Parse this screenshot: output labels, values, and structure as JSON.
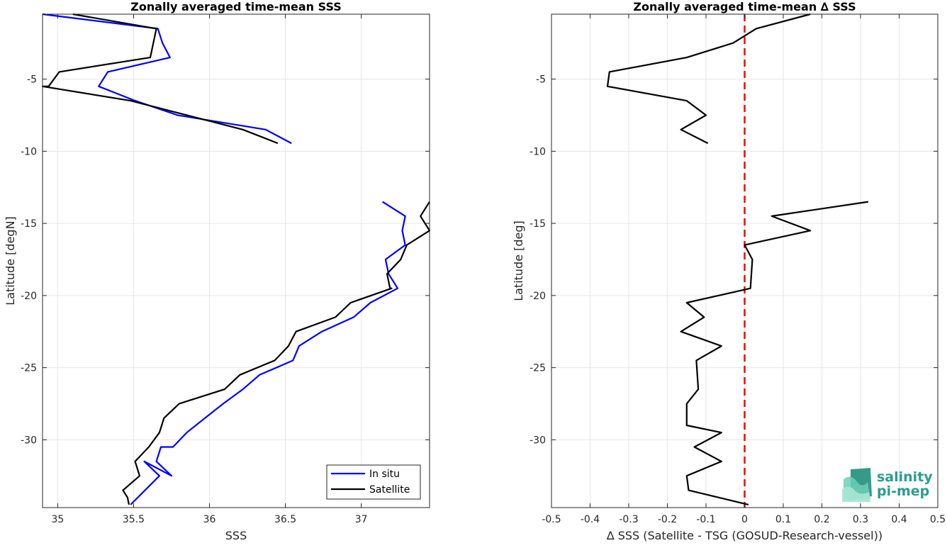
{
  "chart_data": [
    {
      "type": "line",
      "title": "Zonally averaged time-mean SSS",
      "xlabel": "SSS",
      "ylabel": "Latitude [degN]",
      "xlim": [
        34.9,
        37.45
      ],
      "ylim": [
        -34.7,
        -0.5
      ],
      "xticks": [
        35,
        35.5,
        36,
        36.5,
        37
      ],
      "xtick_labels": [
        "35",
        "35.5",
        "36",
        "36.5",
        "37"
      ],
      "yticks": [
        -5,
        -10,
        -15,
        -20,
        -25,
        -30
      ],
      "ytick_labels": [
        "-5",
        "-10",
        "-15",
        "-20",
        "-25",
        "-30"
      ],
      "grid": true,
      "legend": "bottom-right",
      "series": [
        {
          "name": "In situ",
          "color": "#0000ff",
          "segments": [
            {
              "x": [
                34.9,
                35.66,
                35.69,
                35.74,
                35.33,
                35.27,
                35.51,
                35.79,
                36.37,
                36.54
              ],
              "y": [
                -0.5,
                -1.5,
                -2.5,
                -3.5,
                -4.5,
                -5.5,
                -6.5,
                -7.5,
                -8.5,
                -9.45
              ]
            },
            {
              "x": [
                37.14,
                37.29,
                37.27,
                37.29,
                37.16,
                37.18,
                37.24,
                37.06,
                36.95,
                36.74,
                36.59,
                36.55,
                36.33,
                36.22,
                36.09,
                35.97,
                35.85,
                35.76,
                35.75,
                35.68,
                35.65,
                35.75,
                35.57,
                35.67,
                35.48
              ],
              "y": [
                -13.5,
                -14.5,
                -15.5,
                -16.5,
                -17.5,
                -18.5,
                -19.5,
                -20.5,
                -21.5,
                -22.5,
                -23.5,
                -24.5,
                -25.5,
                -26.5,
                -27.5,
                -28.5,
                -29.5,
                -30.5,
                -30.5,
                -30.5,
                -31.5,
                -32.5,
                -31.5,
                -32.5,
                -34.5
              ]
            }
          ]
        },
        {
          "name": "Satellite",
          "color": "#000000",
          "segments": [
            {
              "x": [
                35.1,
                35.65,
                35.63,
                35.61,
                35.01,
                34.94,
                34.9,
                35.48,
                36.22,
                36.45
              ],
              "y": [
                -0.5,
                -1.5,
                -2.5,
                -3.5,
                -4.5,
                -5.5,
                -5.5,
                -6.5,
                -8.5,
                -9.45
              ]
            },
            {
              "x": [
                37.45,
                37.39,
                37.45,
                37.3,
                37.26,
                37.17,
                37.19,
                37.2,
                36.93,
                36.83,
                36.57,
                36.52,
                36.43,
                36.2,
                36.1,
                35.8,
                35.7,
                35.67,
                35.6,
                35.51,
                35.54,
                35.43,
                35.46,
                35.47
              ],
              "y": [
                -13.5,
                -14.5,
                -15.5,
                -16.5,
                -17.5,
                -18.5,
                -19.5,
                -19.5,
                -20.5,
                -21.5,
                -22.5,
                -23.5,
                -24.5,
                -25.5,
                -26.5,
                -27.5,
                -28.5,
                -29.5,
                -30.5,
                -31.5,
                -32.5,
                -33.5,
                -34.0,
                -34.5
              ]
            }
          ]
        }
      ]
    },
    {
      "type": "line",
      "title": "Zonally averaged time-mean ∆ SSS",
      "xlabel": "∆ SSS (Satellite - TSG (GOSUD-Research-vessel))",
      "ylabel": "Latitude [deg]",
      "xlim": [
        -0.5,
        0.5
      ],
      "ylim": [
        -34.7,
        -0.5
      ],
      "xticks": [
        -0.5,
        -0.4,
        -0.3,
        -0.2,
        -0.1,
        0,
        0.1,
        0.2,
        0.3,
        0.4,
        0.5
      ],
      "xtick_labels": [
        "-0.5",
        "-0.4",
        "-0.3",
        "-0.2",
        "-0.1",
        "0",
        "0.1",
        "0.2",
        "0.3",
        "0.4",
        "0.5"
      ],
      "yticks": [
        -5,
        -10,
        -15,
        -20,
        -25,
        -30
      ],
      "ytick_labels": [
        "-5",
        "-10",
        "-15",
        "-20",
        "-25",
        "-30"
      ],
      "grid": true,
      "zero_line": {
        "x": 0,
        "color": "#dd1111",
        "style": "dashed"
      },
      "series": [
        {
          "color": "#000000",
          "segments": [
            {
              "x": [
                0.17,
                0.03,
                -0.03,
                -0.15,
                -0.35,
                -0.355,
                -0.15,
                -0.1,
                -0.165,
                -0.095
              ],
              "y": [
                -0.5,
                -1.5,
                -2.5,
                -3.5,
                -4.5,
                -5.5,
                -6.5,
                -7.5,
                -8.5,
                -9.45
              ]
            },
            {
              "x": [
                0.32,
                0.07,
                0.17,
                0.0,
                0.02,
                0.015,
                -0.15,
                -0.105,
                -0.165,
                -0.06,
                -0.125,
                -0.12,
                -0.15,
                -0.15,
                -0.06,
                -0.13,
                -0.06,
                -0.15,
                -0.145,
                0.01
              ],
              "y": [
                -13.5,
                -14.5,
                -15.5,
                -16.5,
                -17.5,
                -19.5,
                -20.5,
                -21.5,
                -22.5,
                -23.5,
                -24.5,
                -26.5,
                -27.5,
                -29.0,
                -29.5,
                -30.5,
                -31.5,
                -32.5,
                -33.5,
                -34.5
              ]
            }
          ]
        }
      ]
    }
  ],
  "logo": {
    "line1": "salinity",
    "line2": "pi-mep"
  }
}
